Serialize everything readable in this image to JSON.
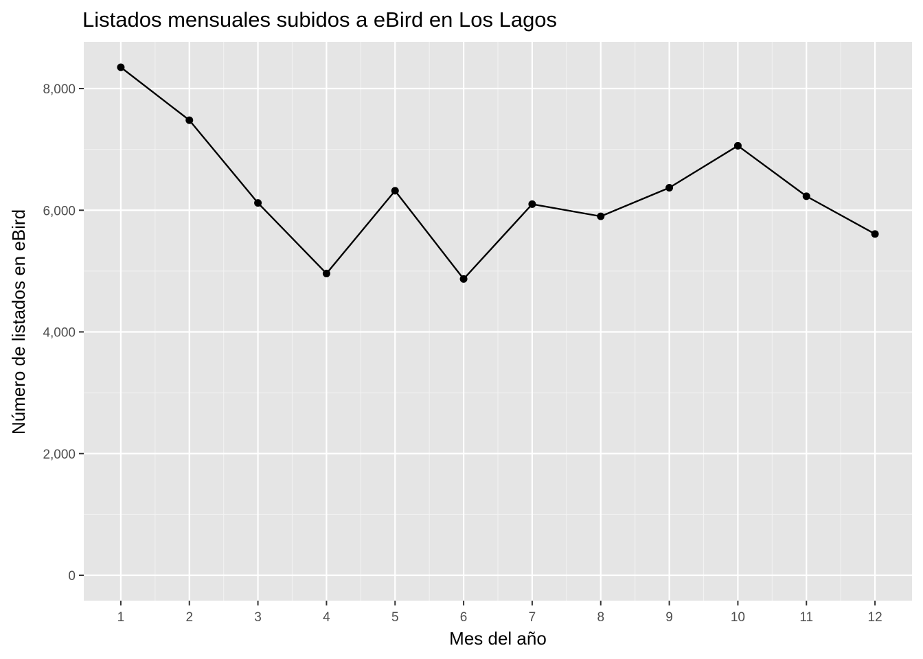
{
  "chart_data": {
    "type": "line",
    "title": "Listados mensuales subidos a eBird en Los Lagos",
    "xlabel": "Mes del año",
    "ylabel": "Número de listados en eBird",
    "x": [
      1,
      2,
      3,
      4,
      5,
      6,
      7,
      8,
      9,
      10,
      11,
      12
    ],
    "x_tick_labels": [
      "1",
      "2",
      "3",
      "4",
      "5",
      "6",
      "7",
      "8",
      "9",
      "10",
      "11",
      "12"
    ],
    "series": [
      {
        "values": [
          8350,
          7480,
          6120,
          4960,
          6320,
          4870,
          6100,
          5900,
          6370,
          7060,
          6230,
          5610
        ]
      }
    ],
    "y_ticks": [
      0,
      2000,
      4000,
      6000,
      8000
    ],
    "y_tick_labels": [
      "0",
      "2,000",
      "4,000",
      "6,000",
      "8,000"
    ],
    "xlim": [
      0.46,
      12.54
    ],
    "ylim": [
      -417.5,
      8767.5
    ],
    "grid": true,
    "legend": "none",
    "colors": {
      "panel_background": "#e5e5e5",
      "grid_major": "#ffffff",
      "grid_minor": "#f2f2f2",
      "line": "#000000",
      "points": "#000000",
      "tick_mark": "#333333"
    }
  }
}
